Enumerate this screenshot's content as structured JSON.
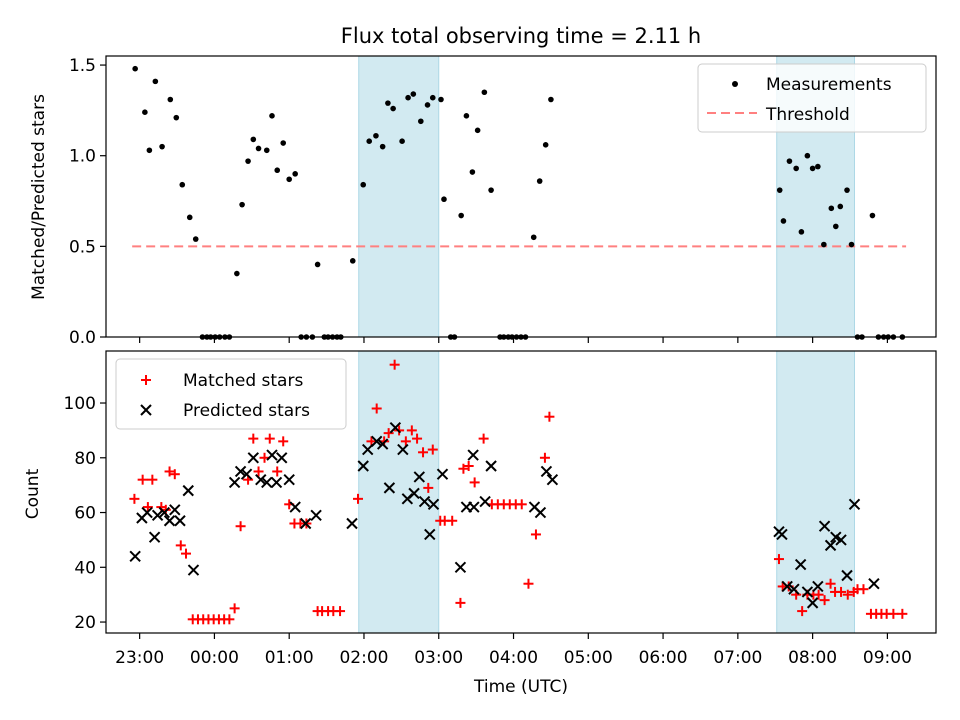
{
  "title": "Flux total observing time = 2.11 h",
  "colors": {
    "measurement": "#000000",
    "threshold": "#ff8080",
    "matched": "#ff0000",
    "predicted": "#000000",
    "shade": "#add8e6"
  },
  "chart_data": [
    {
      "type": "scatter",
      "ylabel": "Matched/Predicted stars",
      "ylim": [
        0,
        1.55
      ],
      "yticks": [
        "0.0",
        "0.5",
        "1.0",
        "1.5"
      ],
      "legend_position": "top-right",
      "legend": {
        "measurements": "Measurements",
        "threshold": "Threshold"
      },
      "threshold": {
        "value": 0.5,
        "x_start": -0.1,
        "x_end": 10.25
      },
      "highlight_bands": [
        [
          2.93,
          4.0
        ],
        [
          8.52,
          9.56
        ]
      ],
      "series": [
        {
          "name": "Measurements",
          "points": [
            [
              -0.06,
              1.48
            ],
            [
              0.07,
              1.24
            ],
            [
              0.13,
              1.03
            ],
            [
              0.21,
              1.41
            ],
            [
              0.3,
              1.05
            ],
            [
              0.41,
              1.31
            ],
            [
              0.49,
              1.21
            ],
            [
              0.57,
              0.84
            ],
            [
              0.67,
              0.66
            ],
            [
              0.75,
              0.54
            ],
            [
              0.84,
              0.0
            ],
            [
              0.9,
              0.0
            ],
            [
              0.95,
              0.0
            ],
            [
              1.01,
              0.0
            ],
            [
              1.07,
              0.0
            ],
            [
              1.14,
              0.0
            ],
            [
              1.2,
              0.0
            ],
            [
              1.3,
              0.35
            ],
            [
              1.37,
              0.73
            ],
            [
              1.45,
              0.97
            ],
            [
              1.52,
              1.09
            ],
            [
              1.59,
              1.04
            ],
            [
              1.7,
              1.03
            ],
            [
              1.77,
              1.22
            ],
            [
              1.84,
              0.92
            ],
            [
              1.92,
              1.07
            ],
            [
              2.0,
              0.87
            ],
            [
              2.08,
              0.9
            ],
            [
              2.16,
              0.0
            ],
            [
              2.23,
              0.0
            ],
            [
              2.31,
              0.0
            ],
            [
              2.38,
              0.4
            ],
            [
              2.47,
              0.0
            ],
            [
              2.52,
              0.0
            ],
            [
              2.58,
              0.0
            ],
            [
              2.64,
              0.0
            ],
            [
              2.69,
              0.0
            ],
            [
              2.85,
              0.42
            ],
            [
              2.99,
              0.84
            ],
            [
              3.07,
              1.08
            ],
            [
              3.16,
              1.11
            ],
            [
              3.25,
              1.05
            ],
            [
              3.32,
              1.29
            ],
            [
              3.39,
              1.26
            ],
            [
              3.51,
              1.08
            ],
            [
              3.59,
              1.32
            ],
            [
              3.66,
              1.34
            ],
            [
              3.76,
              1.19
            ],
            [
              3.85,
              1.28
            ],
            [
              3.92,
              1.32
            ],
            [
              4.03,
              1.31
            ],
            [
              4.07,
              0.76
            ],
            [
              4.16,
              0.0
            ],
            [
              4.21,
              0.0
            ],
            [
              4.3,
              0.67
            ],
            [
              4.37,
              1.22
            ],
            [
              4.45,
              0.91
            ],
            [
              4.52,
              1.14
            ],
            [
              4.61,
              1.35
            ],
            [
              4.7,
              0.81
            ],
            [
              4.82,
              0.0
            ],
            [
              4.87,
              0.0
            ],
            [
              4.93,
              0.0
            ],
            [
              4.98,
              0.0
            ],
            [
              5.04,
              0.0
            ],
            [
              5.1,
              0.0
            ],
            [
              5.16,
              0.0
            ],
            [
              5.27,
              0.55
            ],
            [
              5.35,
              0.86
            ],
            [
              5.43,
              1.06
            ],
            [
              5.5,
              1.31
            ],
            [
              8.56,
              0.81
            ],
            [
              8.61,
              0.64
            ],
            [
              8.69,
              0.97
            ],
            [
              8.78,
              0.93
            ],
            [
              8.85,
              0.58
            ],
            [
              8.93,
              1.0
            ],
            [
              9.0,
              0.93
            ],
            [
              9.07,
              0.94
            ],
            [
              9.15,
              0.51
            ],
            [
              9.25,
              0.71
            ],
            [
              9.31,
              0.61
            ],
            [
              9.37,
              0.72
            ],
            [
              9.46,
              0.81
            ],
            [
              9.52,
              0.51
            ],
            [
              9.6,
              0.0
            ],
            [
              9.66,
              0.0
            ],
            [
              9.8,
              0.67
            ],
            [
              9.88,
              0.0
            ],
            [
              9.95,
              0.0
            ],
            [
              10.01,
              0.0
            ],
            [
              10.08,
              0.0
            ],
            [
              10.2,
              0.0
            ]
          ]
        }
      ]
    },
    {
      "type": "scatter",
      "xlabel": "Time (UTC)",
      "ylabel": "Count",
      "ylim": [
        16,
        119
      ],
      "yticks": [
        "20",
        "40",
        "60",
        "80",
        "100"
      ],
      "xticks": [
        "23:00",
        "00:00",
        "01:00",
        "02:00",
        "03:00",
        "04:00",
        "05:00",
        "06:00",
        "07:00",
        "08:00",
        "09:00"
      ],
      "xlim": [
        -0.45,
        10.65
      ],
      "legend_position": "top-left",
      "legend": {
        "matched": "Matched stars",
        "predicted": "Predicted stars"
      },
      "highlight_bands": [
        [
          2.93,
          4.0
        ],
        [
          8.52,
          9.56
        ]
      ],
      "series": [
        {
          "name": "Matched stars",
          "points": [
            [
              -0.07,
              65
            ],
            [
              0.04,
              72
            ],
            [
              0.11,
              62
            ],
            [
              0.17,
              72
            ],
            [
              0.29,
              62
            ],
            [
              0.35,
              61
            ],
            [
              0.4,
              75
            ],
            [
              0.47,
              74
            ],
            [
              0.55,
              48
            ],
            [
              0.62,
              45
            ],
            [
              0.71,
              21
            ],
            [
              0.78,
              21
            ],
            [
              0.85,
              21
            ],
            [
              0.92,
              21
            ],
            [
              0.99,
              21
            ],
            [
              1.06,
              21
            ],
            [
              1.13,
              21
            ],
            [
              1.2,
              21
            ],
            [
              1.27,
              25
            ],
            [
              1.35,
              55
            ],
            [
              1.45,
              72
            ],
            [
              1.52,
              87
            ],
            [
              1.59,
              75
            ],
            [
              1.67,
              80
            ],
            [
              1.74,
              87
            ],
            [
              1.84,
              75
            ],
            [
              1.92,
              86
            ],
            [
              2.0,
              63
            ],
            [
              2.07,
              56
            ],
            [
              2.15,
              56
            ],
            [
              2.23,
              56
            ],
            [
              2.38,
              24
            ],
            [
              2.44,
              24
            ],
            [
              2.52,
              24
            ],
            [
              2.59,
              24
            ],
            [
              2.68,
              24
            ],
            [
              2.92,
              65
            ],
            [
              3.1,
              86
            ],
            [
              3.17,
              98
            ],
            [
              3.27,
              86
            ],
            [
              3.33,
              89
            ],
            [
              3.41,
              114
            ],
            [
              3.47,
              90
            ],
            [
              3.56,
              86
            ],
            [
              3.64,
              90
            ],
            [
              3.71,
              87
            ],
            [
              3.79,
              82
            ],
            [
              3.86,
              69
            ],
            [
              3.92,
              83
            ],
            [
              4.02,
              57
            ],
            [
              4.08,
              57
            ],
            [
              4.18,
              57
            ],
            [
              4.29,
              27
            ],
            [
              4.33,
              76
            ],
            [
              4.4,
              77
            ],
            [
              4.48,
              71
            ],
            [
              4.6,
              87
            ],
            [
              4.71,
              63
            ],
            [
              4.79,
              63
            ],
            [
              4.87,
              63
            ],
            [
              4.95,
              63
            ],
            [
              5.03,
              63
            ],
            [
              5.11,
              63
            ],
            [
              5.2,
              34
            ],
            [
              5.3,
              52
            ],
            [
              5.42,
              80
            ],
            [
              5.48,
              95
            ],
            [
              8.55,
              43
            ],
            [
              8.6,
              33
            ],
            [
              8.68,
              33
            ],
            [
              8.78,
              30
            ],
            [
              8.86,
              24
            ],
            [
              8.93,
              30
            ],
            [
              9.01,
              30
            ],
            [
              9.08,
              30
            ],
            [
              9.16,
              28
            ],
            [
              9.24,
              34
            ],
            [
              9.3,
              31
            ],
            [
              9.38,
              31
            ],
            [
              9.47,
              30
            ],
            [
              9.55,
              31
            ],
            [
              9.6,
              32
            ],
            [
              9.68,
              32
            ],
            [
              9.78,
              23
            ],
            [
              9.85,
              23
            ],
            [
              9.92,
              23
            ],
            [
              9.99,
              23
            ],
            [
              10.08,
              23
            ],
            [
              10.2,
              23
            ]
          ]
        },
        {
          "name": "Predicted stars",
          "points": [
            [
              -0.06,
              44
            ],
            [
              0.03,
              58
            ],
            [
              0.1,
              60
            ],
            [
              0.2,
              51
            ],
            [
              0.24,
              59
            ],
            [
              0.33,
              60
            ],
            [
              0.4,
              57
            ],
            [
              0.47,
              61
            ],
            [
              0.54,
              57
            ],
            [
              0.65,
              68
            ],
            [
              0.72,
              39
            ],
            [
              1.27,
              71
            ],
            [
              1.35,
              75
            ],
            [
              1.43,
              74
            ],
            [
              1.52,
              80
            ],
            [
              1.62,
              72
            ],
            [
              1.7,
              71
            ],
            [
              1.77,
              81
            ],
            [
              1.83,
              71
            ],
            [
              1.9,
              80
            ],
            [
              2.0,
              72
            ],
            [
              2.08,
              62
            ],
            [
              2.22,
              56
            ],
            [
              2.36,
              59
            ],
            [
              2.84,
              56
            ],
            [
              2.99,
              77
            ],
            [
              3.05,
              83
            ],
            [
              3.17,
              86
            ],
            [
              3.25,
              85
            ],
            [
              3.34,
              69
            ],
            [
              3.42,
              91
            ],
            [
              3.52,
              83
            ],
            [
              3.58,
              65
            ],
            [
              3.67,
              67
            ],
            [
              3.74,
              73
            ],
            [
              3.81,
              64
            ],
            [
              3.88,
              52
            ],
            [
              3.93,
              63
            ],
            [
              4.05,
              74
            ],
            [
              4.29,
              40
            ],
            [
              4.37,
              62
            ],
            [
              4.46,
              81
            ],
            [
              4.47,
              62
            ],
            [
              4.62,
              64
            ],
            [
              4.7,
              77
            ],
            [
              5.28,
              62
            ],
            [
              5.36,
              60
            ],
            [
              5.44,
              75
            ],
            [
              5.52,
              72
            ],
            [
              8.55,
              53
            ],
            [
              8.59,
              52
            ],
            [
              8.66,
              33
            ],
            [
              8.75,
              32
            ],
            [
              8.84,
              41
            ],
            [
              8.93,
              31
            ],
            [
              9.0,
              27
            ],
            [
              9.07,
              33
            ],
            [
              9.16,
              55
            ],
            [
              9.24,
              48
            ],
            [
              9.31,
              51
            ],
            [
              9.38,
              50
            ],
            [
              9.46,
              37
            ],
            [
              9.56,
              63
            ],
            [
              9.82,
              34
            ]
          ]
        }
      ]
    }
  ]
}
